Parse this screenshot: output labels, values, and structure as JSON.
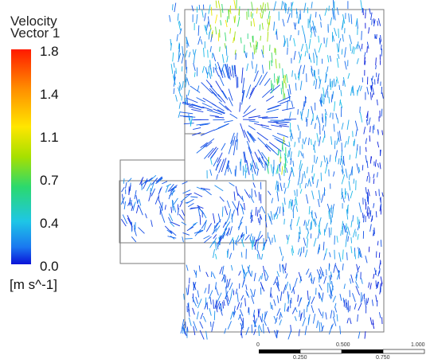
{
  "legend": {
    "title_line1": "Velocity",
    "title_line2": "Vector 1",
    "ticks": [
      "1.8",
      "1.4",
      "1.1",
      "0.7",
      "0.4",
      "0.0"
    ],
    "units": "[m s^-1]",
    "min": 0.0,
    "max": 1.8
  },
  "scale_bar": {
    "top_labels": [
      "0",
      "0.500",
      "1.000"
    ],
    "bottom_labels": [
      "0.250",
      "0.750"
    ]
  },
  "colors": {
    "low": "#0a12d8",
    "mid": "#1ec6e6",
    "high": "#ff1a00"
  }
}
